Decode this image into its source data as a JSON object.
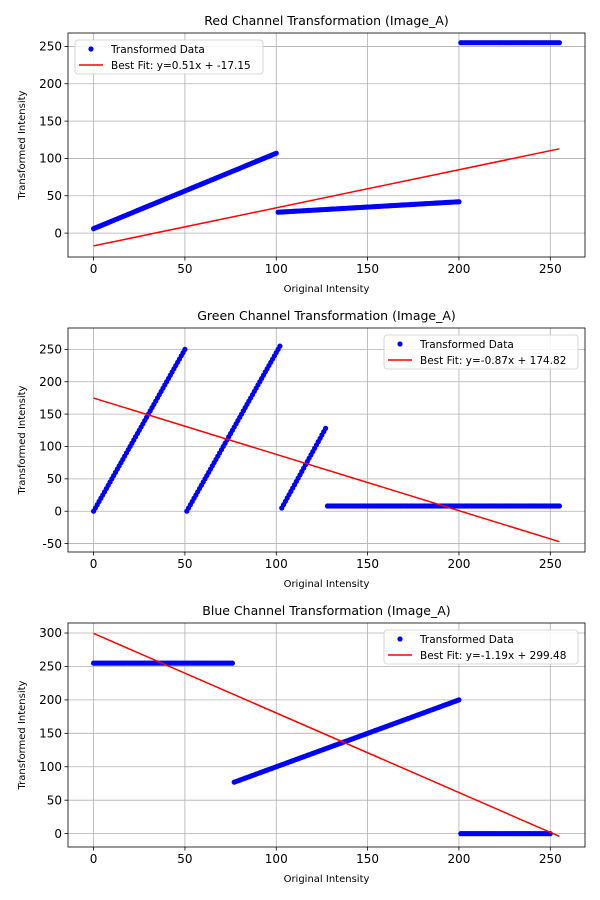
{
  "chart_data": [
    {
      "type": "scatter",
      "title": "Red Channel Transformation (Image_A)",
      "xlabel": "Original Intensity",
      "ylabel": "Transformed Intensity",
      "xlim": [
        -14,
        269
      ],
      "ylim": [
        -32,
        268
      ],
      "xticks": [
        0,
        50,
        100,
        150,
        200,
        250
      ],
      "yticks": [
        0,
        50,
        100,
        150,
        200,
        250
      ],
      "grid": true,
      "legend_position": "upper left",
      "series": [
        {
          "name": "Transformed Data",
          "kind": "points",
          "color": "#0000ff",
          "segments": [
            {
              "x_start": 0,
              "x_end": 100,
              "y_start": 6,
              "y_end": 107
            },
            {
              "x_start": 101,
              "x_end": 200,
              "y_start": 28,
              "y_end": 42
            },
            {
              "x_start": 201,
              "x_end": 255,
              "y_start": 255,
              "y_end": 255
            }
          ]
        },
        {
          "name": "Best Fit: y=0.51x + -17.15",
          "kind": "line",
          "color": "#ff0000",
          "slope": 0.51,
          "intercept": -17.15,
          "x_range": [
            0,
            255
          ]
        }
      ]
    },
    {
      "type": "scatter",
      "title": "Green Channel Transformation (Image_A)",
      "xlabel": "Original Intensity",
      "ylabel": "Transformed Intensity",
      "xlim": [
        -14,
        269
      ],
      "ylim": [
        -63,
        283
      ],
      "xticks": [
        0,
        50,
        100,
        150,
        200,
        250
      ],
      "yticks": [
        -50,
        0,
        50,
        100,
        150,
        200,
        250
      ],
      "grid": true,
      "legend_position": "upper right",
      "series": [
        {
          "name": "Transformed Data",
          "kind": "points",
          "color": "#0000ff",
          "segments": [
            {
              "x_start": 0,
              "x_end": 50,
              "y_start": 0,
              "y_end": 250
            },
            {
              "x_start": 51,
              "x_end": 102,
              "y_start": 0,
              "y_end": 255
            },
            {
              "x_start": 103,
              "x_end": 127,
              "y_start": 5,
              "y_end": 128
            },
            {
              "x_start": 128,
              "x_end": 255,
              "y_start": 8,
              "y_end": 8
            }
          ]
        },
        {
          "name": "Best Fit: y=-0.87x + 174.82",
          "kind": "line",
          "color": "#ff0000",
          "slope": -0.87,
          "intercept": 174.82,
          "x_range": [
            0,
            255
          ]
        }
      ]
    },
    {
      "type": "scatter",
      "title": "Blue Channel Transformation (Image_A)",
      "xlabel": "Original Intensity",
      "ylabel": "Transformed Intensity",
      "xlim": [
        -14,
        269
      ],
      "ylim": [
        -20,
        315
      ],
      "xticks": [
        0,
        50,
        100,
        150,
        200,
        250
      ],
      "yticks": [
        0,
        50,
        100,
        150,
        200,
        250,
        300
      ],
      "grid": true,
      "legend_position": "upper right",
      "series": [
        {
          "name": "Transformed Data",
          "kind": "points",
          "color": "#0000ff",
          "segments": [
            {
              "x_start": 0,
              "x_end": 76,
              "y_start": 255,
              "y_end": 255
            },
            {
              "x_start": 77,
              "x_end": 200,
              "y_start": 77,
              "y_end": 200
            },
            {
              "x_start": 201,
              "x_end": 250,
              "y_start": 0,
              "y_end": 0
            }
          ]
        },
        {
          "name": "Best Fit: y=-1.19x + 299.48",
          "kind": "line",
          "color": "#ff0000",
          "slope": -1.19,
          "intercept": 299.48,
          "x_range": [
            0,
            255
          ]
        }
      ]
    }
  ]
}
